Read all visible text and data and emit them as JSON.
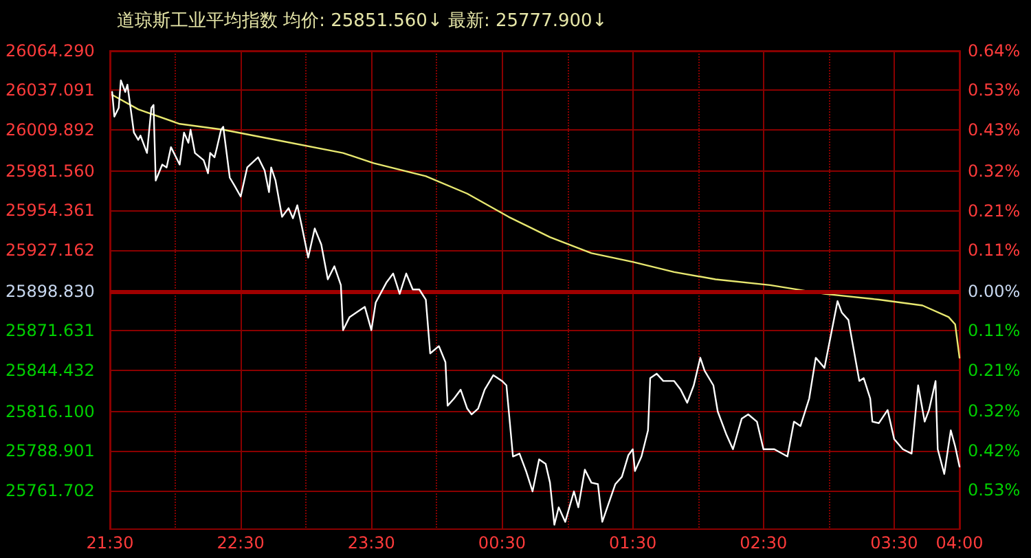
{
  "chart_data": {
    "type": "line",
    "title": "道琼斯工业平均指数 均价: 25851.560↓ 最新: 25777.900↓",
    "xlim": [
      "--01-01T21:30",
      "--01-02T04:00"
    ],
    "xticks": [
      {
        "value": "--01-01T21:30",
        "label": "21:30"
      },
      {
        "value": "--01-01T22:00",
        "label": null
      },
      {
        "value": "--01-01T22:30",
        "label": "22:30"
      },
      {
        "value": "--01-01T23:00",
        "label": null
      },
      {
        "value": "--01-01T23:30",
        "label": "23:30"
      },
      {
        "value": "--01-02T00:00",
        "label": null
      },
      {
        "value": "--01-02T00:30",
        "label": "00:30"
      },
      {
        "value": "--01-02T01:00",
        "label": null
      },
      {
        "value": "--01-02T01:30",
        "label": "01:30"
      },
      {
        "value": "--01-02T02:00",
        "label": null
      },
      {
        "value": "--01-02T02:30",
        "label": "02:30"
      },
      {
        "value": "--01-02T03:00",
        "label": null
      },
      {
        "value": "--01-02T03:30",
        "label": "03:30"
      },
      {
        "value": "--01-02T04:00",
        "label": "04:00"
      }
    ],
    "ylim": [
      25735,
      26064.29
    ],
    "yticks": [
      {
        "value": 26064.29,
        "label": "26064.290"
      },
      {
        "value": 26037.091,
        "label": "26037.091"
      },
      {
        "value": 26009.892,
        "label": "26009.892"
      },
      {
        "value": 25981.56,
        "label": "25981.560"
      },
      {
        "value": 25954.361,
        "label": "25954.361"
      },
      {
        "value": 25927.162,
        "label": "25927.162"
      },
      {
        "value": 25898.83,
        "label": "25898.830"
      },
      {
        "value": 25871.631,
        "label": "25871.631"
      },
      {
        "value": 25844.432,
        "label": "25844.432"
      },
      {
        "value": 25816.1,
        "label": "25816.100"
      },
      {
        "value": 25788.901,
        "label": "25788.901"
      },
      {
        "value": 25761.702,
        "label": "25761.702"
      }
    ],
    "y2lim": [
      -0.633,
      0.639
    ],
    "y2ticks": [
      {
        "value": 0.639,
        "label": "0.64%"
      },
      {
        "value": 0.534,
        "label": "0.53%"
      },
      {
        "value": 0.429,
        "label": "0.43%"
      },
      {
        "value": 0.319,
        "label": "0.32%"
      },
      {
        "value": 0.214,
        "label": "0.21%"
      },
      {
        "value": 0.109,
        "label": "0.11%"
      },
      {
        "value": 0,
        "label": "0.00%"
      },
      {
        "value": -0.105,
        "label": "0.11%"
      },
      {
        "value": -0.21,
        "label": "0.21%"
      },
      {
        "value": -0.319,
        "label": "0.32%"
      },
      {
        "value": -0.424,
        "label": "0.42%"
      },
      {
        "value": -0.529,
        "label": "0.53%"
      }
    ],
    "grid": true,
    "ref_lines": [
      {
        "axis": "y",
        "value": 25898.83,
        "color": "#a00000"
      }
    ],
    "series": [
      {
        "color": "#ffffff",
        "x": [
          "--01-01T21:31",
          "--01-01T21:32",
          "--01-01T21:34",
          "--01-01T21:35",
          "--01-01T21:37",
          "--01-01T21:38",
          "--01-01T21:41",
          "--01-01T21:43",
          "--01-01T21:44",
          "--01-01T21:47",
          "--01-01T21:49",
          "--01-01T21:50",
          "--01-01T21:51",
          "--01-01T21:54",
          "--01-01T21:56",
          "--01-01T21:58",
          "--01-01T22:02",
          "--01-01T22:04",
          "--01-01T22:06",
          "--01-01T22:07",
          "--01-01T22:09",
          "--01-01T22:13",
          "--01-01T22:15",
          "--01-01T22:16",
          "--01-01T22:18",
          "--01-01T22:19",
          "--01-01T22:21",
          "--01-01T22:22",
          "--01-01T22:25",
          "--01-01T22:27",
          "--01-01T22:30",
          "--01-01T22:33",
          "--01-01T22:38",
          "--01-01T22:41",
          "--01-01T22:43",
          "--01-01T22:44",
          "--01-01T22:46",
          "--01-01T22:49",
          "--01-01T22:52",
          "--01-01T22:54",
          "--01-01T22:56",
          "--01-01T22:58",
          "--01-01T23:01",
          "--01-01T23:04",
          "--01-01T23:07",
          "--01-01T23:10",
          "--01-01T23:13",
          "--01-01T23:16",
          "--01-01T23:17",
          "--01-01T23:20",
          "--01-01T23:23",
          "--01-01T23:27",
          "--01-01T23:30",
          "--01-01T23:32",
          "--01-01T23:37",
          "--01-01T23:40",
          "--01-01T23:43",
          "--01-01T23:46",
          "--01-01T23:49",
          "--01-01T23:52",
          "--01-01T23:55",
          "--01-01T23:57",
          "--01-02T00:01",
          "--01-02T00:04",
          "--01-02T00:05",
          "--01-02T00:08",
          "--01-02T00:11",
          "--01-02T00:14",
          "--01-02T00:16",
          "--01-02T00:19",
          "--01-02T00:22",
          "--01-02T00:26",
          "--01-02T00:30",
          "--01-02T00:32",
          "--01-02T00:35",
          "--01-02T00:38",
          "--01-02T00:41",
          "--01-02T00:44",
          "--01-02T00:47",
          "--01-02T00:50",
          "--01-02T00:52",
          "--01-02T00:54",
          "--01-02T00:56",
          "--01-02T00:59",
          "--01-02T01:03",
          "--01-02T01:05",
          "--01-02T01:08",
          "--01-02T01:11",
          "--01-02T01:14",
          "--01-02T01:16",
          "--01-02T01:22",
          "--01-02T01:25",
          "--01-02T01:28",
          "--01-02T01:30",
          "--01-02T01:31",
          "--01-02T01:34",
          "--01-02T01:37",
          "--01-02T01:38",
          "--01-02T01:41",
          "--01-02T01:44",
          "--01-02T01:49",
          "--01-02T01:52",
          "--01-02T01:55",
          "--01-02T01:58",
          "--01-02T02:01",
          "--01-02T02:03",
          "--01-02T02:07",
          "--01-02T02:09",
          "--01-02T02:13",
          "--01-02T02:16",
          "--01-02T02:20",
          "--01-02T02:23",
          "--01-02T02:27",
          "--01-02T02:30",
          "--01-02T02:35",
          "--01-02T02:41",
          "--01-02T02:44",
          "--01-02T02:47",
          "--01-02T02:51",
          "--01-02T02:54",
          "--01-02T02:58",
          "--01-02T03:04",
          "--01-02T03:06",
          "--01-02T03:09",
          "--01-02T03:14",
          "--01-02T03:16",
          "--01-02T03:19",
          "--01-02T03:20",
          "--01-02T03:23",
          "--01-02T03:27",
          "--01-02T03:30",
          "--01-02T03:34",
          "--01-02T03:38",
          "--01-02T03:41",
          "--01-02T03:44",
          "--01-02T03:46",
          "--01-02T03:49",
          "--01-02T03:50",
          "--01-02T03:53",
          "--01-02T03:56",
          "--01-02T03:58",
          "--01-02T04:00"
        ],
        "values": [
          26036,
          26019,
          26025,
          26044,
          26036,
          26041,
          26008,
          26003,
          26006,
          25994,
          26025,
          26027,
          25975,
          25986,
          25984,
          25998,
          25986,
          26008,
          26001,
          26010,
          25994,
          25989,
          25980,
          25994,
          25991,
          25997,
          26010,
          26012,
          25977,
          25972,
          25964,
          25984,
          25991,
          25982,
          25967,
          25984,
          25975,
          25950,
          25956,
          25949,
          25958,
          25944,
          25922,
          25942,
          25931,
          25907,
          25916,
          25903,
          25872,
          25881,
          25884,
          25888,
          25872,
          25891,
          25905,
          25911,
          25897,
          25911,
          25900,
          25900,
          25893,
          25856,
          25861,
          25850,
          25820,
          25825,
          25831,
          25818,
          25814,
          25818,
          25831,
          25841,
          25837,
          25834,
          25785,
          25787,
          25775,
          25761,
          25783,
          25780,
          25767,
          25738,
          25750,
          25740,
          25761,
          25750,
          25776,
          25767,
          25766,
          25740,
          25766,
          25771,
          25786,
          25790,
          25775,
          25785,
          25803,
          25839,
          25842,
          25837,
          25837,
          25831,
          25822,
          25834,
          25853,
          25844,
          25834,
          25816,
          25800,
          25790,
          25811,
          25814,
          25809,
          25790,
          25790,
          25785,
          25809,
          25806,
          25825,
          25853,
          25846,
          25892,
          25884,
          25879,
          25837,
          25839,
          25825,
          25809,
          25808,
          25817,
          25797,
          25790,
          25787,
          25834,
          25809,
          25817,
          25837,
          25790,
          25773,
          25803,
          25792,
          25778
        ]
      },
      {
        "color": "#e8e870",
        "x": [
          "--01-01T21:31",
          "--01-01T21:43",
          "--01-01T22:02",
          "--01-01T22:22",
          "--01-01T22:46",
          "--01-01T23:17",
          "--01-01T23:31",
          "--01-01T23:55",
          "--01-02T00:14",
          "--01-02T00:33",
          "--01-02T00:52",
          "--01-02T01:11",
          "--01-02T01:30",
          "--01-02T01:49",
          "--01-02T02:08",
          "--01-02T02:33",
          "--01-02T02:58",
          "--01-02T03:23",
          "--01-02T03:43",
          "--01-02T03:55",
          "--01-02T03:58",
          "--01-02T04:00"
        ],
        "values": [
          26034,
          26024,
          26014,
          26010,
          26003,
          25994,
          25987,
          25978,
          25966,
          25950,
          25936,
          25925,
          25919,
          25912,
          25907,
          25903,
          25897,
          25893,
          25889,
          25881,
          25876,
          25853
        ]
      }
    ]
  }
}
